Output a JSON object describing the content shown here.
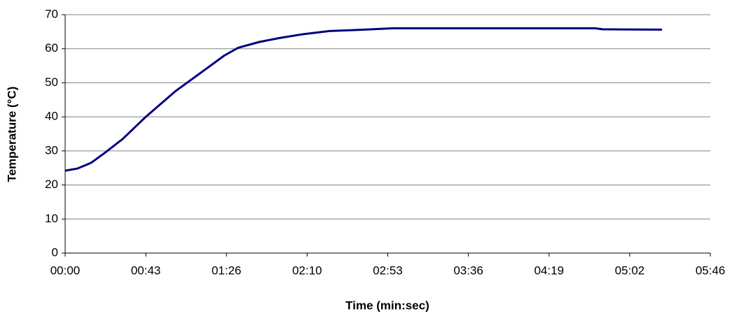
{
  "chart_data": {
    "type": "line",
    "x_label": "Time (min:sec)",
    "y_label": "Temperature (°C)",
    "x": [
      0,
      6.4,
      13.9,
      21.4,
      30.8,
      43.2,
      59,
      74,
      85.2,
      92.7,
      104,
      115.3,
      126.5,
      141.5,
      160.3,
      175.3,
      284,
      287.8,
      319.7
    ],
    "values": [
      24.2,
      24.8,
      26.5,
      29.5,
      33.5,
      40,
      47.5,
      53.5,
      58,
      60.3,
      62,
      63.2,
      64.2,
      65.2,
      65.6,
      66,
      66,
      65.7,
      65.6
    ],
    "color": "#000080",
    "xlim": [
      0,
      345.6
    ],
    "xticks": [
      {
        "value": 0,
        "label": "00:00"
      },
      {
        "value": 43.2,
        "label": "00:43"
      },
      {
        "value": 86.4,
        "label": "01:26"
      },
      {
        "value": 129.6,
        "label": "02:10"
      },
      {
        "value": 172.8,
        "label": "02:53"
      },
      {
        "value": 216,
        "label": "03:36"
      },
      {
        "value": 259.2,
        "label": "04:19"
      },
      {
        "value": 302.4,
        "label": "05:02"
      },
      {
        "value": 345.6,
        "label": "05:46"
      }
    ],
    "ylim": [
      0,
      70
    ],
    "yticks": [
      0,
      10,
      20,
      30,
      40,
      50,
      60,
      70
    ],
    "grid": true
  }
}
